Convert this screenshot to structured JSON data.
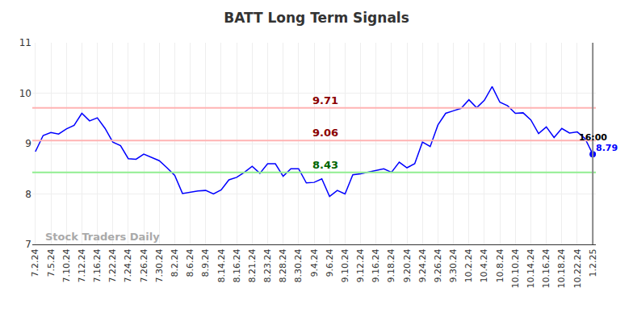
{
  "chart_data": {
    "type": "line",
    "title": "BATT Long Term Signals",
    "categories": [
      "7.2.24",
      null,
      "7.5.24",
      null,
      "7.10.24",
      null,
      "7.12.24",
      null,
      "7.16.24",
      null,
      "7.22.24",
      null,
      "7.24.24",
      null,
      "7.26.24",
      null,
      "7.30.24",
      null,
      "8.2.24",
      null,
      "8.6.24",
      null,
      "8.9.24",
      null,
      "8.14.24",
      null,
      "8.16.24",
      null,
      "8.21.24",
      null,
      "8.23.24",
      null,
      "8.28.24",
      null,
      "8.30.24",
      null,
      "9.4.24",
      null,
      "9.6.24",
      null,
      "9.10.24",
      null,
      "9.12.24",
      null,
      "9.16.24",
      null,
      "9.18.24",
      null,
      "9.20.24",
      null,
      "9.24.24",
      null,
      "9.26.24",
      null,
      "9.30.24",
      null,
      "10.2.24",
      null,
      "10.4.24",
      null,
      "10.8.24",
      null,
      "10.10.24",
      null,
      "10.14.24",
      null,
      "10.16.24",
      null,
      "10.18.24",
      null,
      "10.22.24",
      null,
      "1.2.25"
    ],
    "values": [
      8.84,
      9.16,
      9.22,
      9.19,
      9.29,
      9.36,
      9.6,
      9.45,
      9.51,
      9.3,
      9.03,
      8.96,
      8.7,
      8.69,
      8.79,
      8.72,
      8.66,
      8.52,
      8.37,
      8.01,
      8.04,
      8.06,
      8.07,
      8.0,
      8.08,
      8.28,
      8.33,
      8.43,
      8.55,
      8.41,
      8.6,
      8.6,
      8.35,
      8.5,
      8.5,
      8.22,
      8.23,
      8.3,
      7.95,
      8.07,
      8.0,
      8.38,
      8.4,
      8.43,
      8.47,
      8.5,
      8.43,
      8.63,
      8.52,
      8.6,
      9.03,
      8.94,
      9.37,
      9.6,
      9.65,
      9.7,
      9.87,
      9.71,
      9.86,
      10.13,
      9.82,
      9.75,
      9.6,
      9.61,
      9.47,
      9.2,
      9.33,
      9.12,
      9.3,
      9.21,
      9.23,
      9.1,
      8.79
    ],
    "color": "#0000ff",
    "ylim": [
      7,
      11
    ],
    "yticks": [
      7,
      8,
      9,
      10,
      11
    ],
    "grid": true,
    "levels": [
      {
        "value": 9.71,
        "color": "#ffb3b3"
      },
      {
        "value": 9.06,
        "color": "#ffb3b3"
      },
      {
        "value": 8.43,
        "color": "#90ee90"
      }
    ],
    "annotations": [
      {
        "text": "16:00"
      },
      {
        "text": "Stock Traders Daily"
      }
    ]
  }
}
